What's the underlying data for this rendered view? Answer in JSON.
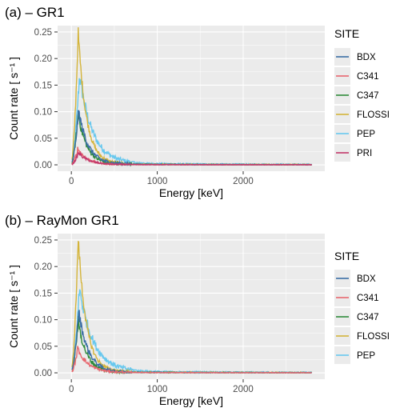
{
  "colors": {
    "BDX": "#3b6ea5",
    "C341": "#e8676f",
    "C347": "#2e8b3a",
    "FLOSSI": "#d4b43a",
    "PEP": "#68c8ee",
    "PRI": "#c2386b",
    "panel_bg": "#ebebeb",
    "grid": "#ffffff"
  },
  "chart_data": [
    {
      "type": "line",
      "title": "(a) – GR1",
      "xlabel": "Energy [keV]",
      "ylabel": "Count rate [ s⁻¹ ]",
      "xlim": [
        -160,
        2950
      ],
      "ylim": [
        -0.012,
        0.262
      ],
      "xticks": [
        0,
        1000,
        2000
      ],
      "xtick_labels": [
        "0",
        "1000",
        "2000"
      ],
      "yticks": [
        0,
        0.05,
        0.1,
        0.15,
        0.2,
        0.25
      ],
      "ytick_labels": [
        "0.00",
        "0.05",
        "0.10",
        "0.15",
        "0.20",
        "0.25"
      ],
      "grid": true,
      "legend": {
        "title": "SITE",
        "position": "right",
        "items": [
          "BDX",
          "C341",
          "C347",
          "FLOSSI",
          "PEP",
          "PRI"
        ]
      },
      "x_max": 2800,
      "series": [
        {
          "name": "PEP",
          "peak": 0.165,
          "peak_x": 95,
          "width": 150,
          "tail": 0.004,
          "noise": 0.012
        },
        {
          "name": "FLOSSI",
          "peak": 0.245,
          "peak_x": 80,
          "width": 95,
          "tail": 0.002,
          "noise": 0.01
        },
        {
          "name": "C347",
          "peak": 0.095,
          "peak_x": 80,
          "width": 100,
          "tail": 0.0015,
          "noise": 0.008
        },
        {
          "name": "BDX",
          "peak": 0.1,
          "peak_x": 85,
          "width": 110,
          "tail": 0.0015,
          "noise": 0.008
        },
        {
          "name": "C341",
          "peak": 0.03,
          "peak_x": 75,
          "width": 110,
          "tail": 0.0005,
          "noise": 0.004
        },
        {
          "name": "PRI",
          "peak": 0.022,
          "peak_x": 85,
          "width": 120,
          "tail": 0.0005,
          "noise": 0.003
        }
      ]
    },
    {
      "type": "line",
      "title": "(b) – RayMon GR1",
      "xlabel": "Energy [keV]",
      "ylabel": "Count rate [ s⁻¹ ]",
      "xlim": [
        -160,
        2950
      ],
      "ylim": [
        -0.012,
        0.262
      ],
      "xticks": [
        0,
        1000,
        2000
      ],
      "xtick_labels": [
        "0",
        "1000",
        "2000"
      ],
      "yticks": [
        0,
        0.05,
        0.1,
        0.15,
        0.2,
        0.25
      ],
      "ytick_labels": [
        "0.00",
        "0.05",
        "0.10",
        "0.15",
        "0.20",
        "0.25"
      ],
      "grid": true,
      "legend": {
        "title": "SITE",
        "position": "right",
        "items": [
          "BDX",
          "C341",
          "C347",
          "FLOSSI",
          "PEP"
        ]
      },
      "x_max": 2800,
      "series": [
        {
          "name": "PEP",
          "peak": 0.155,
          "peak_x": 95,
          "width": 160,
          "tail": 0.004,
          "noise": 0.012
        },
        {
          "name": "FLOSSI",
          "peak": 0.25,
          "peak_x": 80,
          "width": 95,
          "tail": 0.002,
          "noise": 0.01
        },
        {
          "name": "C347",
          "peak": 0.095,
          "peak_x": 80,
          "width": 100,
          "tail": 0.0015,
          "noise": 0.008
        },
        {
          "name": "BDX",
          "peak": 0.115,
          "peak_x": 85,
          "width": 110,
          "tail": 0.0015,
          "noise": 0.008
        },
        {
          "name": "C341",
          "peak": 0.045,
          "peak_x": 75,
          "width": 120,
          "tail": 0.0008,
          "noise": 0.005
        }
      ]
    }
  ]
}
